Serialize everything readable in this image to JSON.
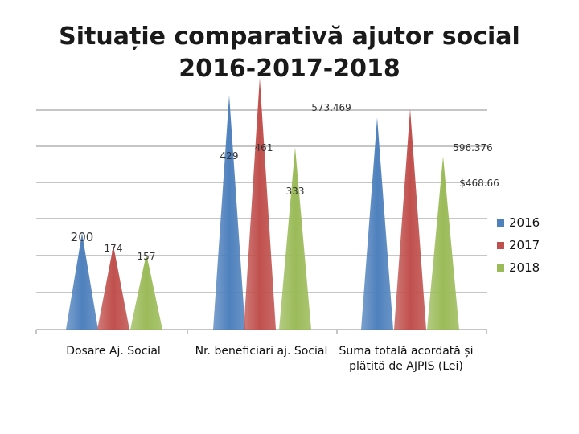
{
  "title": {
    "line1": "Situație comparativă ajutor social",
    "line2": "2016-2017-2018"
  },
  "colors": {
    "2016": "#4f81bd",
    "2017": "#c0504d",
    "2018": "#9bbb59"
  },
  "chart_data": {
    "type": "bar",
    "shape": "cone",
    "title": "Situație comparativă ajutor social 2016-2017-2018",
    "categories": [
      "Dosare Aj. Social",
      "Nr. beneficiari aj. Social",
      "Suma totală acordată și plătită de AJPIS (Lei)"
    ],
    "category_lines": [
      [
        "Dosare Aj. Social"
      ],
      [
        "Nr. beneficiari aj. Social"
      ],
      [
        "Suma totală acordată și",
        "plătită de AJPIS (Lei)"
      ]
    ],
    "series": [
      {
        "name": "2016",
        "values": [
          200,
          429,
          573.469
        ]
      },
      {
        "name": "2017",
        "values": [
          174,
          461,
          596.376
        ]
      },
      {
        "name": "2018",
        "values": [
          157,
          333,
          468.66
        ]
      }
    ],
    "data_labels": [
      [
        "200",
        "174",
        "157"
      ],
      [
        "429",
        "461",
        "333"
      ],
      [
        "573.469",
        "596.376",
        "$468.66"
      ]
    ],
    "grid": true,
    "legend": "right"
  }
}
